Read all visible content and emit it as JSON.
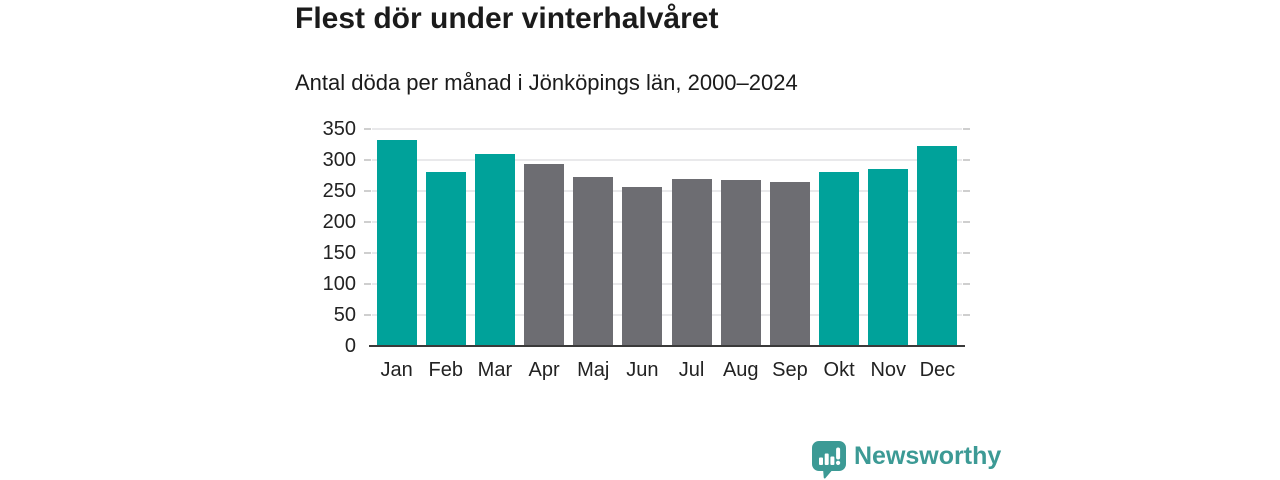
{
  "header": {
    "title": "Flest dör under vinterhalvåret",
    "subtitle": "Antal döda per månad i Jönköpings län, 2000–2024"
  },
  "chart_data": {
    "type": "bar",
    "title": "Flest dör under vinterhalvåret",
    "subtitle": "Antal döda per månad i Jönköpings län, 2000–2024",
    "categories": [
      "Jan",
      "Feb",
      "Mar",
      "Apr",
      "Maj",
      "Jun",
      "Jul",
      "Aug",
      "Sep",
      "Okt",
      "Nov",
      "Dec"
    ],
    "values": [
      332,
      281,
      310,
      293,
      272,
      257,
      269,
      267,
      264,
      281,
      286,
      323
    ],
    "bar_colors": [
      "teal",
      "teal",
      "teal",
      "gray",
      "gray",
      "gray",
      "gray",
      "gray",
      "gray",
      "teal",
      "teal",
      "teal"
    ],
    "palette": {
      "teal": "#00a29a",
      "gray": "#6d6d72"
    },
    "xlabel": "",
    "ylabel": "",
    "ylim": [
      0,
      350
    ],
    "yticks": [
      0,
      50,
      100,
      150,
      200,
      250,
      300,
      350
    ],
    "grid": true,
    "legend": "none"
  },
  "footer": {
    "brand": "Newsworthy",
    "logo_icon": "newsworthy-chart-bubble-icon",
    "brand_color": "#3c9a95"
  },
  "colors": {
    "bar_teal": "#00a29a",
    "bar_gray": "#6d6d72",
    "gridline": "#e9e9eb",
    "tick": "#cfcfcf",
    "axis": "#3a3a3a",
    "text": "#1b1b1b"
  }
}
